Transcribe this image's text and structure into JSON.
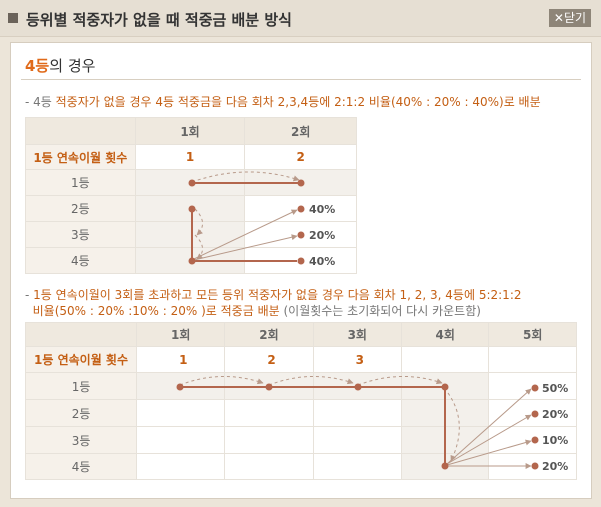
{
  "window": {
    "title": "등위별 적중자가 없을 때 적중금 배분 방식",
    "close_label": "닫기"
  },
  "section": {
    "title_accent": "4등",
    "title_rest": "의 경우"
  },
  "case1": {
    "desc_prefix": "- 4등 ",
    "desc_text": "적중자가 없을 경우 4등 적중금을 다음 회차 2,3,4등에 2:1:2 비율(40% : 20% : 40%)로 배분",
    "headers": [
      "",
      "1회",
      "2회"
    ],
    "row_consecutive": {
      "label": "1등 연속이월 횟수",
      "values": [
        "1",
        "2"
      ]
    },
    "rows": [
      "1등",
      "2등",
      "3등",
      "4등"
    ],
    "percents": [
      "40%",
      "20%",
      "40%"
    ]
  },
  "case2": {
    "desc_prefix": "- ",
    "desc_line1": "1등 연속이월이 3회를 초과하고 모든 등위 적중자가 없을 경우 다음 회차 1, 2, 3, 4등에 5:2:1:2",
    "desc_line2_a": "  비율(50% : 20% :10% : 20% )로 적중금 배분 ",
    "desc_line2_b": "(이월횟수는 초기화되어 다시 카운트함)",
    "headers": [
      "",
      "1회",
      "2회",
      "3회",
      "4회",
      "5회"
    ],
    "row_consecutive": {
      "label": "1등 연속이월 횟수",
      "values": [
        "1",
        "2",
        "3",
        "",
        ""
      ]
    },
    "rows": [
      "1등",
      "2등",
      "3등",
      "4등"
    ],
    "percents": [
      "50%",
      "20%",
      "10%",
      "20%"
    ]
  },
  "colors": {
    "accent": "#c45f14",
    "arrow": "#b3664d"
  }
}
